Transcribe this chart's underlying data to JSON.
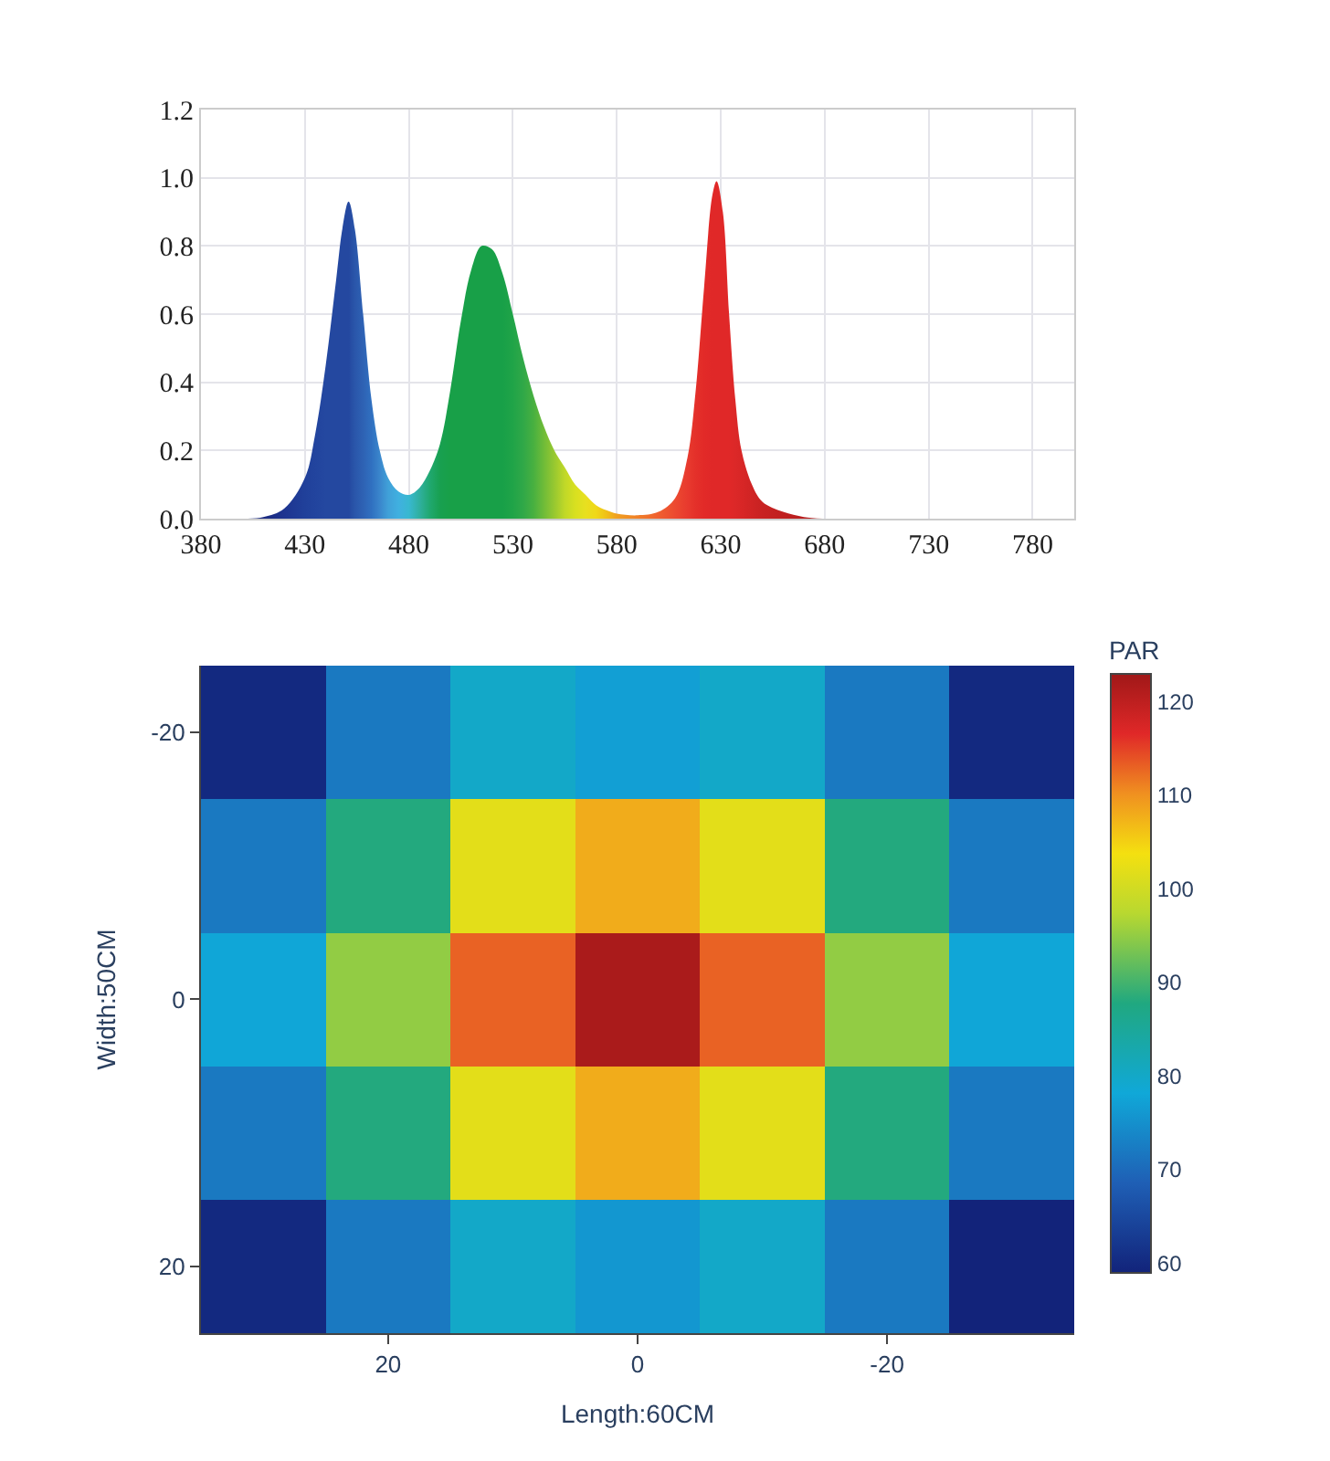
{
  "chart_data": [
    {
      "type": "area",
      "x": [
        400,
        410,
        420,
        430,
        435,
        440,
        445,
        448,
        451,
        454,
        458,
        462,
        466,
        470,
        475,
        480,
        485,
        490,
        495,
        500,
        505,
        510,
        515,
        520,
        525,
        530,
        535,
        540,
        545,
        550,
        555,
        560,
        565,
        570,
        575,
        580,
        590,
        600,
        608,
        614,
        618,
        622,
        626,
        628,
        631,
        634,
        637,
        640,
        645,
        650,
        660,
        670,
        680
      ],
      "values": [
        0,
        0.005,
        0.03,
        0.12,
        0.25,
        0.45,
        0.7,
        0.85,
        0.93,
        0.85,
        0.6,
        0.35,
        0.2,
        0.12,
        0.08,
        0.07,
        0.09,
        0.14,
        0.22,
        0.38,
        0.58,
        0.73,
        0.8,
        0.79,
        0.72,
        0.6,
        0.47,
        0.36,
        0.27,
        0.2,
        0.15,
        0.1,
        0.07,
        0.04,
        0.025,
        0.015,
        0.01,
        0.02,
        0.06,
        0.18,
        0.38,
        0.68,
        0.95,
        0.99,
        0.9,
        0.6,
        0.35,
        0.2,
        0.1,
        0.05,
        0.02,
        0.005,
        0
      ],
      "colors": [
        "#1a2a80",
        "#1a2a80",
        "#1e3490",
        "#20409a",
        "#22449e",
        "#2448a0",
        "#2448a0",
        "#2448a0",
        "#2448a0",
        "#2a56aa",
        "#2e62b4",
        "#3070c0",
        "#3a86cc",
        "#40a0d8",
        "#40b0e0",
        "#38b8d0",
        "#30b0a0",
        "#20a870",
        "#18a050",
        "#18a048",
        "#18a048",
        "#18a048",
        "#18a048",
        "#18a048",
        "#18a048",
        "#20a448",
        "#30a848",
        "#48b040",
        "#70bc38",
        "#98c830",
        "#c0d828",
        "#d8e020",
        "#e8e020",
        "#f0d818",
        "#f0c018",
        "#f0a020",
        "#f08028",
        "#f06030",
        "#ec4a30",
        "#e83a2e",
        "#e4302a",
        "#e22a28",
        "#e02828",
        "#e02828",
        "#e02828",
        "#e02828",
        "#dc2828",
        "#d82626",
        "#d02424",
        "#c82222",
        "#c02020",
        "#b81e1e",
        "#b01c1c"
      ],
      "xlim": [
        380,
        800
      ],
      "xticks": [
        380,
        430,
        480,
        530,
        580,
        630,
        680,
        730,
        780
      ],
      "ylim": [
        0,
        1.2
      ],
      "yticks": [
        {
          "value": 0,
          "label": "0.0"
        },
        {
          "value": 0.2,
          "label": "0.2"
        },
        {
          "value": 0.4,
          "label": "0.4"
        },
        {
          "value": 0.6,
          "label": "0.6"
        },
        {
          "value": 0.8,
          "label": "0.8"
        },
        {
          "value": 1,
          "label": "1.0"
        },
        {
          "value": 1.2,
          "label": "1.2"
        }
      ],
      "grid": true
    },
    {
      "type": "heatmap",
      "categories": [
        null,
        "20",
        null,
        "0",
        null,
        "-20",
        null
      ],
      "y_categories": [
        "-20",
        null,
        "0",
        null,
        "20"
      ],
      "cells": [
        [
          60,
          72,
          80,
          77,
          80,
          72,
          60
        ],
        [
          72,
          88,
          102,
          108,
          102,
          88,
          72
        ],
        [
          78,
          95,
          113,
          122,
          113,
          95,
          78
        ],
        [
          72,
          88,
          102,
          108,
          102,
          88,
          72
        ],
        [
          60,
          72,
          80,
          76,
          80,
          72,
          58
        ]
      ],
      "xlabel": "Length:60CM",
      "ylabel": "Width:50CM",
      "clabel": "PAR",
      "clim": [
        59,
        123
      ],
      "cticks": [
        60,
        70,
        80,
        90,
        100,
        110,
        120
      ]
    }
  ]
}
